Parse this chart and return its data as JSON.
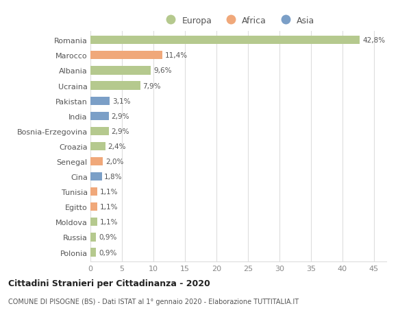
{
  "countries": [
    "Romania",
    "Marocco",
    "Albania",
    "Ucraina",
    "Pakistan",
    "India",
    "Bosnia-Erzegovina",
    "Croazia",
    "Senegal",
    "Cina",
    "Tunisia",
    "Egitto",
    "Moldova",
    "Russia",
    "Polonia"
  ],
  "values": [
    42.8,
    11.4,
    9.6,
    7.9,
    3.1,
    2.9,
    2.9,
    2.4,
    2.0,
    1.8,
    1.1,
    1.1,
    1.1,
    0.9,
    0.9
  ],
  "labels": [
    "42,8%",
    "11,4%",
    "9,6%",
    "7,9%",
    "3,1%",
    "2,9%",
    "2,9%",
    "2,4%",
    "2,0%",
    "1,8%",
    "1,1%",
    "1,1%",
    "1,1%",
    "0,9%",
    "0,9%"
  ],
  "continents": [
    "Europa",
    "Africa",
    "Europa",
    "Europa",
    "Asia",
    "Asia",
    "Europa",
    "Europa",
    "Africa",
    "Asia",
    "Africa",
    "Africa",
    "Europa",
    "Europa",
    "Europa"
  ],
  "colors": {
    "Europa": "#b5c98e",
    "Africa": "#f0a87a",
    "Asia": "#7b9fc7"
  },
  "xlim": [
    0,
    47
  ],
  "xticks": [
    0,
    5,
    10,
    15,
    20,
    25,
    30,
    35,
    40,
    45
  ],
  "title": "Cittadini Stranieri per Cittadinanza - 2020",
  "subtitle": "COMUNE DI PISOGNE (BS) - Dati ISTAT al 1° gennaio 2020 - Elaborazione TUTTITALIA.IT",
  "bg_color": "#ffffff",
  "grid_color": "#dddddd",
  "bar_height": 0.55
}
